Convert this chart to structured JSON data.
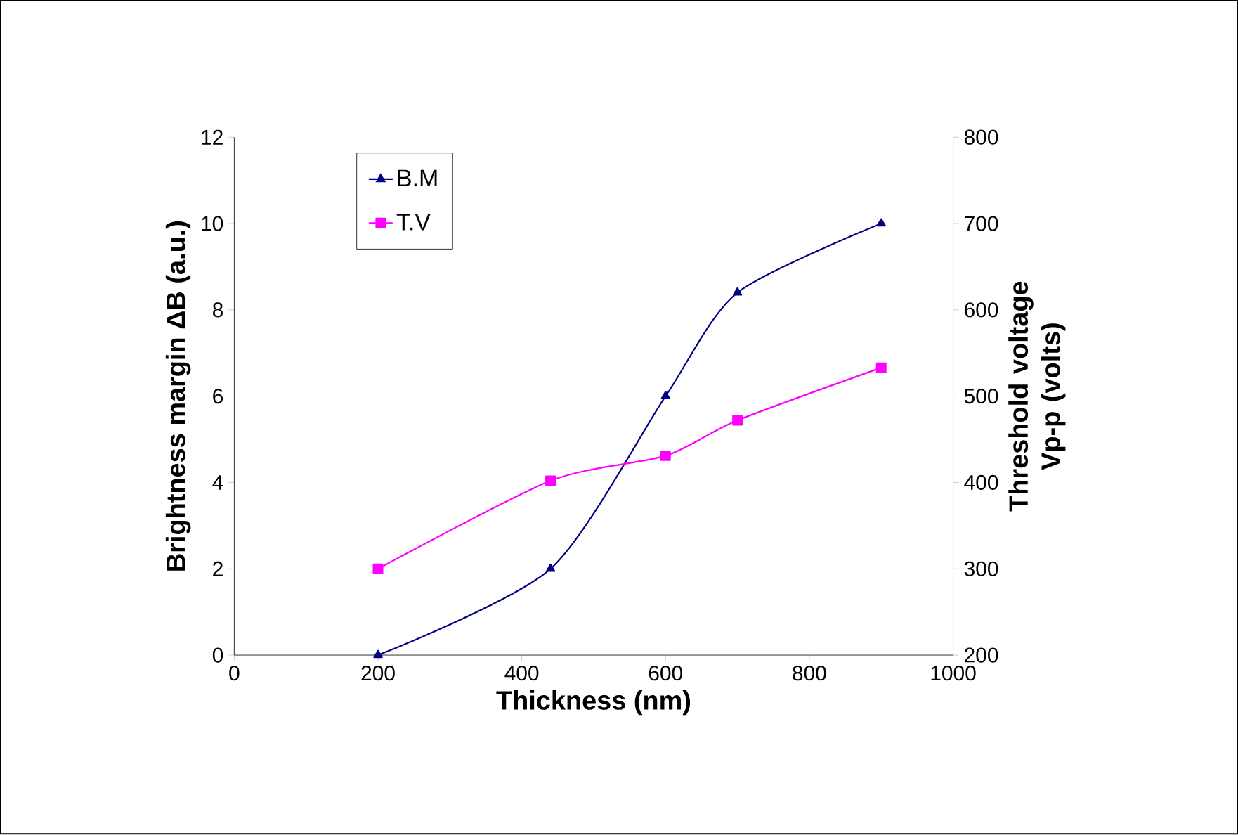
{
  "chart_data": {
    "type": "line",
    "xlabel": "Thickness (nm)",
    "ylabel": "Brightness margin ΔB (a.u.)",
    "y2label": "Threshold voltage Vp-p (volts)",
    "x": [
      200,
      440,
      600,
      700,
      900
    ],
    "series": [
      {
        "name": "B.M",
        "color": "#000080",
        "values": [
          0,
          2,
          6,
          8.4,
          10
        ],
        "marker": "triangle"
      },
      {
        "name": "T.V",
        "color": "#ff00ff",
        "values": [
          300,
          402,
          431,
          472,
          533
        ],
        "marker": "square",
        "axis": "y2"
      }
    ],
    "xlim": [
      0,
      1000
    ],
    "xticks": [
      0,
      200,
      400,
      600,
      800,
      1000
    ],
    "ylim": [
      0,
      12
    ],
    "yticks": [
      0,
      2,
      4,
      6,
      8,
      10,
      12
    ],
    "y2lim": [
      200,
      800
    ],
    "y2ticks": [
      200,
      300,
      400,
      500,
      600,
      700,
      800
    ],
    "legend": "top left",
    "grid": false
  }
}
